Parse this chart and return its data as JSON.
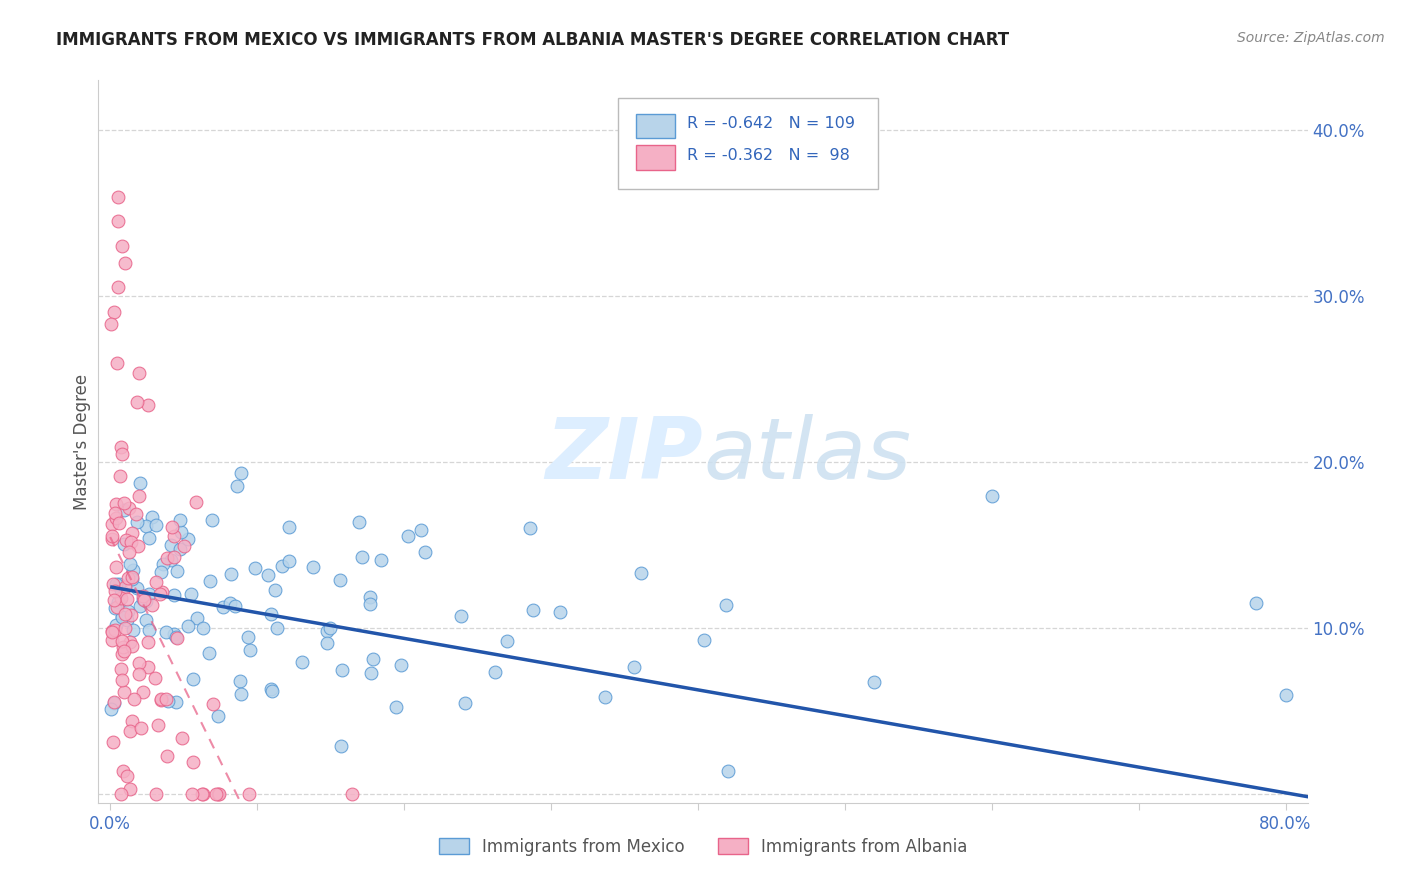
{
  "title": "IMMIGRANTS FROM MEXICO VS IMMIGRANTS FROM ALBANIA MASTER'S DEGREE CORRELATION CHART",
  "source": "Source: ZipAtlas.com",
  "ylabel": "Master's Degree",
  "legend_labels": [
    "Immigrants from Mexico",
    "Immigrants from Albania"
  ],
  "mexico_R": -0.642,
  "mexico_N": 109,
  "albania_R": -0.362,
  "albania_N": 98,
  "mexico_color": "#b8d4ea",
  "albania_color": "#f5b0c5",
  "mexico_edge_color": "#5b9bd5",
  "albania_edge_color": "#e8648a",
  "mexico_line_color": "#2255aa",
  "albania_line_color": "#cc3366",
  "watermark_color": "#ddeeff",
  "xlim": [
    0.0,
    0.8
  ],
  "ylim": [
    0.0,
    0.42
  ],
  "xtick_labels": [
    "0.0%",
    "",
    "",
    "",
    "",
    "",
    "",
    "",
    "80.0%"
  ],
  "xtick_vals": [
    0.0,
    0.1,
    0.2,
    0.3,
    0.4,
    0.5,
    0.6,
    0.7,
    0.8
  ],
  "ytick_vals": [
    0.0,
    0.1,
    0.2,
    0.3,
    0.4
  ],
  "ytick_labels": [
    "",
    "10.0%",
    "20.0%",
    "30.0%",
    "40.0%"
  ],
  "mexico_intercept": 0.125,
  "mexico_slope": -0.155,
  "albania_intercept": 0.155,
  "albania_slope": -1.8,
  "background_color": "#ffffff",
  "grid_color": "#cccccc"
}
